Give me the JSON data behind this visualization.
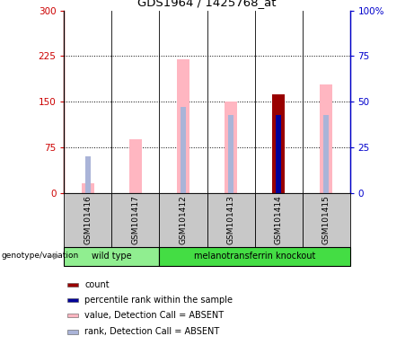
{
  "title": "GDS1964 / 1425768_at",
  "samples": [
    "GSM101416",
    "GSM101417",
    "GSM101412",
    "GSM101413",
    "GSM101414",
    "GSM101415"
  ],
  "ylim_left": [
    0,
    300
  ],
  "ylim_right": [
    0,
    100
  ],
  "yticks_left": [
    0,
    75,
    150,
    225,
    300
  ],
  "yticks_right": [
    0,
    25,
    50,
    75,
    100
  ],
  "ytick_labels_left": [
    "0",
    "75",
    "150",
    "225",
    "300"
  ],
  "ytick_labels_right": [
    "0",
    "25",
    "50",
    "75",
    "100%"
  ],
  "left_color": "#cc0000",
  "right_color": "#0000cc",
  "value_absent_color": "#ffb6c1",
  "rank_absent_color": "#aab4d8",
  "count_color": "#990000",
  "pct_rank_color": "#000099",
  "bars": {
    "GSM101416": {
      "value_absent": 16,
      "rank_absent_pct": 20,
      "count": null,
      "pct_rank": null
    },
    "GSM101417": {
      "value_absent": 88,
      "rank_absent_pct": null,
      "count": null,
      "pct_rank": null
    },
    "GSM101412": {
      "value_absent": 220,
      "rank_absent_pct": 47,
      "count": null,
      "pct_rank": null
    },
    "GSM101413": {
      "value_absent": 150,
      "rank_absent_pct": 43,
      "count": null,
      "pct_rank": null
    },
    "GSM101414": {
      "value_absent": null,
      "rank_absent_pct": null,
      "count": 162,
      "pct_rank": 43
    },
    "GSM101415": {
      "value_absent": 178,
      "rank_absent_pct": 43,
      "count": null,
      "pct_rank": null
    }
  },
  "wt_samples": [
    "GSM101416",
    "GSM101417"
  ],
  "mt_samples": [
    "GSM101412",
    "GSM101413",
    "GSM101414",
    "GSM101415"
  ],
  "group_color_wt": "#90ee90",
  "group_color_mt": "#44dd44",
  "group_bg": "#c8c8c8",
  "legend_items": [
    {
      "label": "count",
      "color": "#990000"
    },
    {
      "label": "percentile rank within the sample",
      "color": "#000099"
    },
    {
      "label": "value, Detection Call = ABSENT",
      "color": "#ffb6c1"
    },
    {
      "label": "rank, Detection Call = ABSENT",
      "color": "#aab4d8"
    }
  ]
}
